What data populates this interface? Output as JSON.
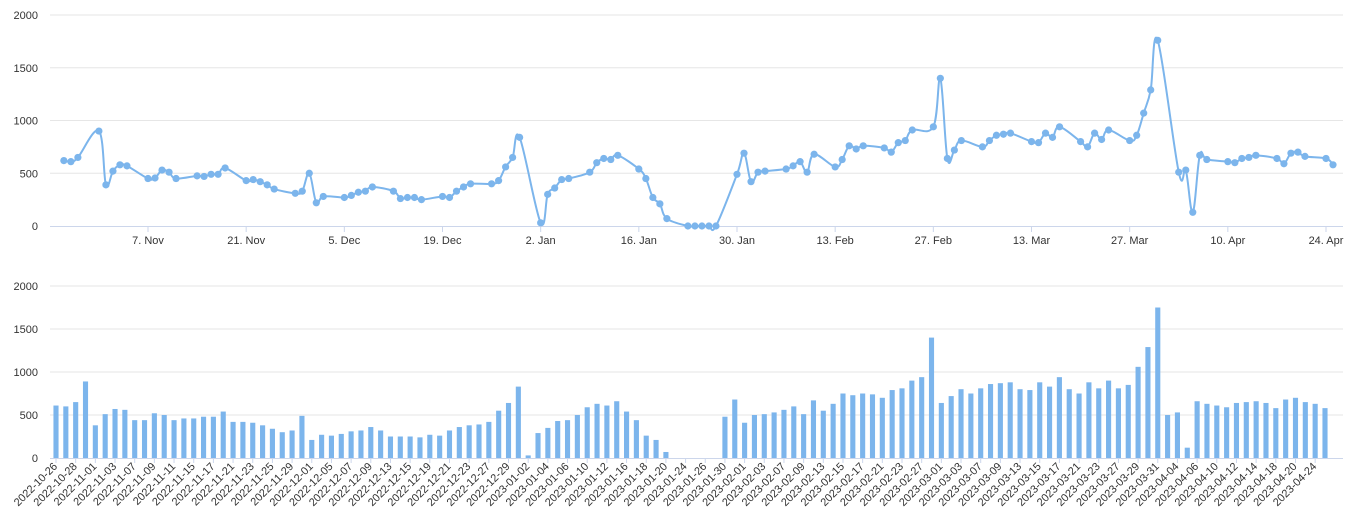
{
  "colors": {
    "series": "#7cb5ec",
    "grid": "#e6e6e6",
    "axis": "#ccd6eb",
    "text": "#333333"
  },
  "chart_data": [
    {
      "type": "line",
      "title": "",
      "xlabel": "",
      "ylabel": "",
      "ylim": [
        0,
        2000
      ],
      "grid": true,
      "y_ticks": [
        "0",
        "500",
        "1000",
        "1500",
        "2000"
      ],
      "x_ticks": [
        {
          "label": "7. Nov",
          "x": "2022-11-07"
        },
        {
          "label": "21. Nov",
          "x": "2022-11-21"
        },
        {
          "label": "5. Dec",
          "x": "2022-12-05"
        },
        {
          "label": "19. Dec",
          "x": "2022-12-19"
        },
        {
          "label": "2. Jan",
          "x": "2023-01-02"
        },
        {
          "label": "16. Jan",
          "x": "2023-01-16"
        },
        {
          "label": "30. Jan",
          "x": "2023-01-30"
        },
        {
          "label": "13. Feb",
          "x": "2023-02-13"
        },
        {
          "label": "27. Feb",
          "x": "2023-02-27"
        },
        {
          "label": "13. Mar",
          "x": "2023-03-13"
        },
        {
          "label": "27. Mar",
          "x": "2023-03-27"
        },
        {
          "label": "10. Apr",
          "x": "2023-04-10"
        },
        {
          "label": "24. Apr",
          "x": "2023-04-24"
        }
      ],
      "series": [
        {
          "points": [
            [
              "2022-10-26",
              620
            ],
            [
              "2022-10-27",
              610
            ],
            [
              "2022-10-28",
              650
            ],
            [
              "2022-10-31",
              900
            ],
            [
              "2022-11-01",
              390
            ],
            [
              "2022-11-02",
              520
            ],
            [
              "2022-11-03",
              580
            ],
            [
              "2022-11-04",
              570
            ],
            [
              "2022-11-07",
              450
            ],
            [
              "2022-11-08",
              455
            ],
            [
              "2022-11-09",
              530
            ],
            [
              "2022-11-10",
              510
            ],
            [
              "2022-11-11",
              450
            ],
            [
              "2022-11-14",
              475
            ],
            [
              "2022-11-15",
              470
            ],
            [
              "2022-11-16",
              490
            ],
            [
              "2022-11-17",
              490
            ],
            [
              "2022-11-18",
              550
            ],
            [
              "2022-11-21",
              430
            ],
            [
              "2022-11-22",
              440
            ],
            [
              "2022-11-23",
              420
            ],
            [
              "2022-11-24",
              390
            ],
            [
              "2022-11-25",
              350
            ],
            [
              "2022-11-28",
              310
            ],
            [
              "2022-11-29",
              330
            ],
            [
              "2022-11-30",
              500
            ],
            [
              "2022-12-01",
              220
            ],
            [
              "2022-12-02",
              280
            ],
            [
              "2022-12-05",
              270
            ],
            [
              "2022-12-06",
              290
            ],
            [
              "2022-12-07",
              320
            ],
            [
              "2022-12-08",
              330
            ],
            [
              "2022-12-09",
              370
            ],
            [
              "2022-12-12",
              330
            ],
            [
              "2022-12-13",
              260
            ],
            [
              "2022-12-14",
              270
            ],
            [
              "2022-12-15",
              270
            ],
            [
              "2022-12-16",
              250
            ],
            [
              "2022-12-19",
              280
            ],
            [
              "2022-12-20",
              270
            ],
            [
              "2022-12-21",
              330
            ],
            [
              "2022-12-22",
              370
            ],
            [
              "2022-12-23",
              400
            ],
            [
              "2022-12-26",
              400
            ],
            [
              "2022-12-27",
              430
            ],
            [
              "2022-12-28",
              560
            ],
            [
              "2022-12-29",
              650
            ],
            [
              "2022-12-30",
              840
            ],
            [
              "2023-01-02",
              30
            ],
            [
              "2023-01-03",
              300
            ],
            [
              "2023-01-04",
              360
            ],
            [
              "2023-01-05",
              440
            ],
            [
              "2023-01-06",
              450
            ],
            [
              "2023-01-09",
              510
            ],
            [
              "2023-01-10",
              600
            ],
            [
              "2023-01-11",
              640
            ],
            [
              "2023-01-12",
              630
            ],
            [
              "2023-01-13",
              670
            ],
            [
              "2023-01-16",
              540
            ],
            [
              "2023-01-17",
              450
            ],
            [
              "2023-01-18",
              270
            ],
            [
              "2023-01-19",
              210
            ],
            [
              "2023-01-20",
              70
            ],
            [
              "2023-01-23",
              0
            ],
            [
              "2023-01-24",
              0
            ],
            [
              "2023-01-25",
              0
            ],
            [
              "2023-01-26",
              0
            ],
            [
              "2023-01-27",
              0
            ],
            [
              "2023-01-30",
              490
            ],
            [
              "2023-01-31",
              690
            ],
            [
              "2023-02-01",
              420
            ],
            [
              "2023-02-02",
              510
            ],
            [
              "2023-02-03",
              520
            ],
            [
              "2023-02-06",
              540
            ],
            [
              "2023-02-07",
              570
            ],
            [
              "2023-02-08",
              610
            ],
            [
              "2023-02-09",
              510
            ],
            [
              "2023-02-10",
              680
            ],
            [
              "2023-02-13",
              560
            ],
            [
              "2023-02-14",
              630
            ],
            [
              "2023-02-15",
              760
            ],
            [
              "2023-02-16",
              730
            ],
            [
              "2023-02-17",
              760
            ],
            [
              "2023-02-20",
              740
            ],
            [
              "2023-02-21",
              700
            ],
            [
              "2023-02-22",
              790
            ],
            [
              "2023-02-23",
              810
            ],
            [
              "2023-02-24",
              910
            ],
            [
              "2023-02-27",
              940
            ],
            [
              "2023-02-28",
              1400
            ],
            [
              "2023-03-01",
              640
            ],
            [
              "2023-03-02",
              720
            ],
            [
              "2023-03-03",
              810
            ],
            [
              "2023-03-06",
              750
            ],
            [
              "2023-03-07",
              810
            ],
            [
              "2023-03-08",
              860
            ],
            [
              "2023-03-09",
              870
            ],
            [
              "2023-03-10",
              880
            ],
            [
              "2023-03-13",
              800
            ],
            [
              "2023-03-14",
              790
            ],
            [
              "2023-03-15",
              880
            ],
            [
              "2023-03-16",
              840
            ],
            [
              "2023-03-17",
              940
            ],
            [
              "2023-03-20",
              800
            ],
            [
              "2023-03-21",
              750
            ],
            [
              "2023-03-22",
              880
            ],
            [
              "2023-03-23",
              820
            ],
            [
              "2023-03-24",
              910
            ],
            [
              "2023-03-27",
              810
            ],
            [
              "2023-03-28",
              860
            ],
            [
              "2023-03-29",
              1070
            ],
            [
              "2023-03-30",
              1290
            ],
            [
              "2023-03-31",
              1760
            ],
            [
              "2023-04-03",
              510
            ],
            [
              "2023-04-04",
              530
            ],
            [
              "2023-04-05",
              130
            ],
            [
              "2023-04-06",
              670
            ],
            [
              "2023-04-07",
              630
            ],
            [
              "2023-04-10",
              610
            ],
            [
              "2023-04-11",
              600
            ],
            [
              "2023-04-12",
              640
            ],
            [
              "2023-04-13",
              650
            ],
            [
              "2023-04-14",
              670
            ],
            [
              "2023-04-17",
              640
            ],
            [
              "2023-04-18",
              590
            ],
            [
              "2023-04-19",
              690
            ],
            [
              "2023-04-20",
              700
            ],
            [
              "2023-04-21",
              660
            ],
            [
              "2023-04-24",
              640
            ],
            [
              "2023-04-25",
              580
            ]
          ]
        }
      ]
    },
    {
      "type": "bar",
      "title": "",
      "xlabel": "",
      "ylabel": "",
      "ylim": [
        0,
        2000
      ],
      "grid": true,
      "y_ticks": [
        "0",
        "500",
        "1000",
        "1500",
        "2000"
      ],
      "categories": [
        "2022-10-26",
        "2022-10-27",
        "2022-10-28",
        "2022-10-31",
        "2022-11-01",
        "2022-11-02",
        "2022-11-03",
        "2022-11-04",
        "2022-11-07",
        "2022-11-08",
        "2022-11-09",
        "2022-11-10",
        "2022-11-11",
        "2022-11-14",
        "2022-11-15",
        "2022-11-16",
        "2022-11-17",
        "2022-11-18",
        "2022-11-21",
        "2022-11-22",
        "2022-11-23",
        "2022-11-24",
        "2022-11-25",
        "2022-11-28",
        "2022-11-29",
        "2022-11-30",
        "2022-12-01",
        "2022-12-02",
        "2022-12-05",
        "2022-12-06",
        "2022-12-07",
        "2022-12-08",
        "2022-12-09",
        "2022-12-12",
        "2022-12-13",
        "2022-12-14",
        "2022-12-15",
        "2022-12-16",
        "2022-12-19",
        "2022-12-20",
        "2022-12-21",
        "2022-12-22",
        "2022-12-23",
        "2022-12-26",
        "2022-12-27",
        "2022-12-28",
        "2022-12-29",
        "2022-12-30",
        "2023-01-02",
        "2023-01-03",
        "2023-01-04",
        "2023-01-05",
        "2023-01-06",
        "2023-01-09",
        "2023-01-10",
        "2023-01-11",
        "2023-01-12",
        "2023-01-13",
        "2023-01-16",
        "2023-01-17",
        "2023-01-18",
        "2023-01-19",
        "2023-01-20",
        "2023-01-23",
        "2023-01-24",
        "2023-01-25",
        "2023-01-26",
        "2023-01-27",
        "2023-01-30",
        "2023-01-31",
        "2023-02-01",
        "2023-02-02",
        "2023-02-03",
        "2023-02-06",
        "2023-02-07",
        "2023-02-08",
        "2023-02-09",
        "2023-02-10",
        "2023-02-13",
        "2023-02-14",
        "2023-02-15",
        "2023-02-16",
        "2023-02-17",
        "2023-02-20",
        "2023-02-21",
        "2023-02-22",
        "2023-02-23",
        "2023-02-24",
        "2023-02-27",
        "2023-02-28",
        "2023-03-01",
        "2023-03-02",
        "2023-03-03",
        "2023-03-06",
        "2023-03-07",
        "2023-03-08",
        "2023-03-09",
        "2023-03-10",
        "2023-03-13",
        "2023-03-14",
        "2023-03-15",
        "2023-03-16",
        "2023-03-17",
        "2023-03-20",
        "2023-03-21",
        "2023-03-22",
        "2023-03-23",
        "2023-03-24",
        "2023-03-27",
        "2023-03-28",
        "2023-03-29",
        "2023-03-30",
        "2023-03-31",
        "2023-04-03",
        "2023-04-04",
        "2023-04-05",
        "2023-04-06",
        "2023-04-07",
        "2023-04-10",
        "2023-04-11",
        "2023-04-12",
        "2023-04-13",
        "2023-04-14",
        "2023-04-17",
        "2023-04-18",
        "2023-04-19",
        "2023-04-20",
        "2023-04-21",
        "2023-04-24",
        "2023-04-25"
      ],
      "values": [
        610,
        600,
        650,
        890,
        380,
        510,
        570,
        560,
        440,
        440,
        520,
        500,
        440,
        460,
        460,
        480,
        480,
        540,
        420,
        420,
        410,
        380,
        340,
        300,
        320,
        490,
        210,
        270,
        260,
        280,
        310,
        320,
        360,
        320,
        250,
        250,
        250,
        240,
        270,
        260,
        320,
        360,
        380,
        390,
        420,
        550,
        640,
        830,
        30,
        290,
        350,
        430,
        440,
        500,
        590,
        630,
        610,
        660,
        540,
        440,
        260,
        210,
        70,
        0,
        0,
        0,
        0,
        0,
        480,
        680,
        410,
        500,
        510,
        530,
        560,
        600,
        510,
        670,
        550,
        630,
        750,
        730,
        750,
        740,
        700,
        790,
        810,
        900,
        940,
        1400,
        640,
        720,
        800,
        750,
        810,
        860,
        870,
        880,
        800,
        790,
        880,
        830,
        940,
        800,
        750,
        880,
        810,
        900,
        810,
        850,
        1060,
        1290,
        1750,
        500,
        530,
        120,
        660,
        630,
        610,
        590,
        640,
        650,
        660,
        640,
        580,
        680,
        700,
        650,
        630,
        580
      ],
      "x_tick_labels": [
        "2022-10-26",
        "2022-10-28",
        "2022-11-01",
        "2022-11-03",
        "2022-11-07",
        "2022-11-09",
        "2022-11-11",
        "2022-11-15",
        "2022-11-17",
        "2022-11-21",
        "2022-11-23",
        "2022-11-25",
        "2022-11-29",
        "2022-12-01",
        "2022-12-05",
        "2022-12-07",
        "2022-12-09",
        "2022-12-13",
        "2022-12-15",
        "2022-12-19",
        "2022-12-21",
        "2022-12-23",
        "2022-12-27",
        "2022-12-29",
        "2023-01-02",
        "2023-01-04",
        "2023-01-06",
        "2023-01-10",
        "2023-01-12",
        "2023-01-16",
        "2023-01-18",
        "2023-01-20",
        "2023-01-24",
        "2023-01-26",
        "2023-01-30",
        "2023-02-01",
        "2023-02-03",
        "2023-02-07",
        "2023-02-09",
        "2023-02-13",
        "2023-02-15",
        "2023-02-17",
        "2023-02-21",
        "2023-02-23",
        "2023-02-27",
        "2023-03-01",
        "2023-03-03",
        "2023-03-07",
        "2023-03-09",
        "2023-03-13",
        "2023-03-15",
        "2023-03-17",
        "2023-03-21",
        "2023-03-23",
        "2023-03-27",
        "2023-03-29",
        "2023-03-31",
        "2023-04-04",
        "2023-04-06",
        "2023-04-10",
        "2023-04-12",
        "2023-04-14",
        "2023-04-18",
        "2023-04-20",
        "2023-04-24"
      ]
    }
  ]
}
